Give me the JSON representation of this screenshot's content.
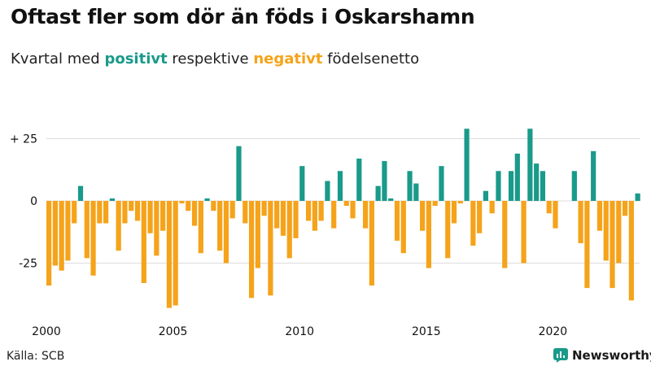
{
  "header": {
    "title": "Oftast fler som dör än föds i Oskarshamn",
    "subtitle_prefix": "Kvartal med ",
    "subtitle_positive": "positivt",
    "subtitle_middle": " respektive ",
    "subtitle_negative": "negativt",
    "subtitle_suffix": " födelsenetto"
  },
  "footer": {
    "source": "Källa: SCB",
    "brand": "Newsworthy"
  },
  "colors": {
    "positive": "#1a9a8a",
    "negative": "#f5a31a",
    "grid": "#dddddd",
    "text": "#111111"
  },
  "chart_data": {
    "type": "bar",
    "title": "Oftast fler som dör än föds i Oskarshamn",
    "x_start": "2000 Q1",
    "x_ticks": [
      "2000",
      "2005",
      "2010",
      "2015",
      "2020"
    ],
    "y_ticks": [
      "+ 25",
      "0",
      "-25"
    ],
    "y_tick_values": [
      25,
      0,
      -25
    ],
    "ylim": [
      -44,
      30
    ],
    "grid": true,
    "values": [
      -34,
      -26,
      -28,
      -24,
      -9,
      6,
      -23,
      -30,
      -9,
      -9,
      1,
      -20,
      -9,
      -4,
      -8,
      -33,
      -13,
      -22,
      -12,
      -43,
      -42,
      -1,
      -4,
      -10,
      -21,
      1,
      -4,
      -20,
      -25,
      -7,
      22,
      -9,
      -39,
      -27,
      -6,
      -38,
      -11,
      -14,
      -23,
      -15,
      14,
      -8,
      -12,
      -8,
      8,
      -11,
      12,
      -2,
      -7,
      17,
      -11,
      -34,
      6,
      16,
      1,
      -16,
      -21,
      12,
      7,
      -12,
      -27,
      -2,
      14,
      -23,
      -9,
      -1,
      29,
      -18,
      -13,
      4,
      -5,
      12,
      -27,
      12,
      19,
      -25,
      29,
      15,
      12,
      -5,
      -11,
      0,
      0,
      12,
      -17,
      -35,
      20,
      -12,
      -24,
      -35,
      -25,
      -6,
      -40,
      3
    ]
  }
}
